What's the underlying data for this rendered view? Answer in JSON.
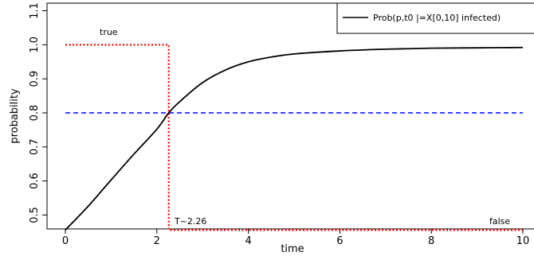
{
  "chart_data": {
    "type": "line",
    "title": "",
    "xlabel": "time",
    "ylabel": "probability",
    "xlim": [
      0,
      10
    ],
    "ylim": [
      0.45,
      1.1
    ],
    "xticks": [
      0,
      2,
      4,
      6,
      8,
      10
    ],
    "yticks": [
      0.5,
      0.6,
      0.7,
      0.8,
      0.9,
      1.0,
      1.1
    ],
    "ytick_labels": [
      "0.5",
      "0.6",
      "0.7",
      "0.8",
      "0.9",
      "1.0",
      "1.1"
    ],
    "grid": false,
    "legend": {
      "position": "top-right",
      "entries": [
        "Prob(p,t0 |=X[0,10] infected)"
      ]
    },
    "series": [
      {
        "name": "Prob(p,t0 |=X[0,10] infected)",
        "color": "#000000",
        "style": "solid",
        "x": [
          0,
          0.5,
          1,
          1.5,
          2,
          2.26,
          2.5,
          3,
          3.5,
          4,
          4.5,
          5,
          6,
          7,
          8,
          9,
          10
        ],
        "y": [
          0.456,
          0.526,
          0.603,
          0.679,
          0.752,
          0.8,
          0.833,
          0.889,
          0.926,
          0.95,
          0.964,
          0.973,
          0.982,
          0.987,
          0.99,
          0.991,
          0.992
        ]
      }
    ],
    "threshold": {
      "value": 0.8,
      "color": "#0000ff",
      "style": "dashed"
    },
    "indicator": {
      "color": "#ff0000",
      "style": "dotted",
      "x_switch": 2.26,
      "high": 1.0,
      "low": 0.456,
      "true_label": "true",
      "false_label": "false",
      "switch_label": "T~2.26"
    }
  }
}
